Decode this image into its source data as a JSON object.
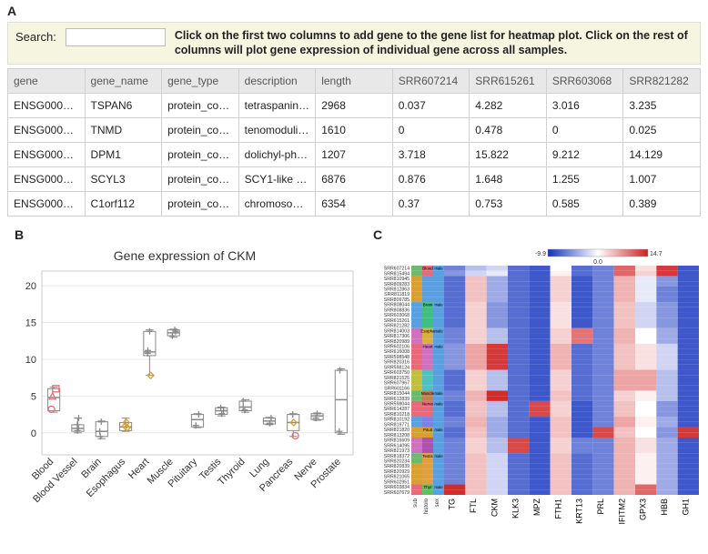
{
  "panel_labels": {
    "a": "A",
    "b": "B",
    "c": "C"
  },
  "search": {
    "label": "Search:",
    "placeholder": ""
  },
  "instruction": "Click on the first two columns to add gene to the gene list for heatmap plot. Click on the rest of columns will plot gene expression of individual gene across all samples.",
  "table": {
    "columns": [
      "gene",
      "gene_name",
      "gene_type",
      "description",
      "length",
      "SRR607214",
      "SRR615261",
      "SRR603068",
      "SRR821282"
    ],
    "rows": [
      [
        "ENSG0000…",
        "TSPAN6",
        "protein_coding",
        "tetraspanin …",
        "2968",
        "0.037",
        "4.282",
        "3.016",
        "3.235"
      ],
      [
        "ENSG0000…",
        "TNMD",
        "protein_coding",
        "tenomodulin…",
        "1610",
        "0",
        "0.478",
        "0",
        "0.025"
      ],
      [
        "ENSG0000…",
        "DPM1",
        "protein_coding",
        "dolichyl-pho…",
        "1207",
        "3.718",
        "15.822",
        "9.212",
        "14.129"
      ],
      [
        "ENSG0000…",
        "SCYL3",
        "protein_coding",
        "SCY1-like 3 …",
        "6876",
        "0.876",
        "1.648",
        "1.255",
        "1.007"
      ],
      [
        "ENSG0000…",
        "C1orf112",
        "protein_coding",
        "chromosom…",
        "6354",
        "0.37",
        "0.753",
        "0.585",
        "0.389"
      ]
    ]
  },
  "boxplot": {
    "title": "Gene expression of CKM",
    "title_fontsize": 14,
    "ylim": [
      -3,
      22
    ],
    "yticks": [
      0,
      5,
      10,
      15,
      20
    ],
    "categories": [
      "Blood",
      "Blood Vessel",
      "Brain",
      "Esophagus",
      "Heart",
      "Muscle",
      "Pituitary",
      "Testis",
      "Thyroid",
      "Lung",
      "Pancreas",
      "Nerve",
      "Prostate"
    ],
    "boxes": [
      {
        "q1": 3.0,
        "median": 4.8,
        "q3": 6.0,
        "whisker_lo": 2.8,
        "whisker_hi": 6.2
      },
      {
        "q1": 0.2,
        "median": 0.6,
        "q3": 1.1,
        "whisker_lo": 0.0,
        "whisker_hi": 2.0
      },
      {
        "q1": -0.5,
        "median": 0.2,
        "q3": 1.5,
        "whisker_lo": -0.8,
        "whisker_hi": 1.6
      },
      {
        "q1": 0.3,
        "median": 0.8,
        "q3": 1.4,
        "whisker_lo": 0.2,
        "whisker_hi": 2.0
      },
      {
        "q1": 10.5,
        "median": 11.0,
        "q3": 13.8,
        "whisker_lo": 7.8,
        "whisker_hi": 14.0
      },
      {
        "q1": 13.2,
        "median": 13.6,
        "q3": 14.0,
        "whisker_lo": 13.0,
        "whisker_hi": 14.1
      },
      {
        "q1": 0.8,
        "median": 1.8,
        "q3": 2.5,
        "whisker_lo": 0.7,
        "whisker_hi": 2.6
      },
      {
        "q1": 2.5,
        "median": 3.0,
        "q3": 3.4,
        "whisker_lo": 2.3,
        "whisker_hi": 3.5
      },
      {
        "q1": 3.0,
        "median": 3.5,
        "q3": 4.3,
        "whisker_lo": 2.8,
        "whisker_hi": 4.5
      },
      {
        "q1": 1.2,
        "median": 1.6,
        "q3": 2.0,
        "whisker_lo": 1.1,
        "whisker_hi": 2.1
      },
      {
        "q1": 0.3,
        "median": 1.4,
        "q3": 2.5,
        "whisker_lo": -0.5,
        "whisker_hi": 2.6
      },
      {
        "q1": 1.8,
        "median": 2.3,
        "q3": 2.6,
        "whisker_lo": 1.7,
        "whisker_hi": 2.7
      },
      {
        "q1": 0.0,
        "median": 4.5,
        "q3": 8.5,
        "whisker_lo": -0.2,
        "whisker_hi": 8.7
      }
    ],
    "points": [
      {
        "cat": 0,
        "y": 3.2,
        "shape": "circle",
        "color": "#e86a7a"
      },
      {
        "cat": 0,
        "y": 5.0,
        "shape": "triangle",
        "color": "#e86a7a"
      },
      {
        "cat": 0,
        "y": 6.0,
        "shape": "square",
        "color": "#e86a7a"
      },
      {
        "cat": 1,
        "y": 0.3,
        "shape": "plus",
        "color": "#888"
      },
      {
        "cat": 1,
        "y": 0.6,
        "shape": "plus",
        "color": "#888"
      },
      {
        "cat": 1,
        "y": 1.1,
        "shape": "plus",
        "color": "#888"
      },
      {
        "cat": 1,
        "y": 2.0,
        "shape": "plus",
        "color": "#888"
      },
      {
        "cat": 2,
        "y": 0.2,
        "shape": "plus",
        "color": "#888"
      },
      {
        "cat": 2,
        "y": 1.5,
        "shape": "plus",
        "color": "#888"
      },
      {
        "cat": 2,
        "y": -0.5,
        "shape": "plus",
        "color": "#888"
      },
      {
        "cat": 3,
        "y": 0.7,
        "shape": "diamond",
        "color": "#d8a030"
      },
      {
        "cat": 3,
        "y": 0.9,
        "shape": "diamond",
        "color": "#d8a030"
      },
      {
        "cat": 3,
        "y": 1.4,
        "shape": "diamond",
        "color": "#d8a030"
      },
      {
        "cat": 4,
        "y": 7.8,
        "shape": "diamond",
        "color": "#d8a030"
      },
      {
        "cat": 4,
        "y": 10.8,
        "shape": "plus",
        "color": "#888"
      },
      {
        "cat": 4,
        "y": 11.2,
        "shape": "plus",
        "color": "#888"
      },
      {
        "cat": 4,
        "y": 13.8,
        "shape": "plus",
        "color": "#888"
      },
      {
        "cat": 5,
        "y": 13.2,
        "shape": "plus",
        "color": "#888"
      },
      {
        "cat": 5,
        "y": 13.8,
        "shape": "plus",
        "color": "#888"
      },
      {
        "cat": 5,
        "y": 14.0,
        "shape": "plus",
        "color": "#888"
      },
      {
        "cat": 6,
        "y": 1.0,
        "shape": "plus",
        "color": "#888"
      },
      {
        "cat": 6,
        "y": 2.5,
        "shape": "plus",
        "color": "#888"
      },
      {
        "cat": 7,
        "y": 2.6,
        "shape": "plus",
        "color": "#888"
      },
      {
        "cat": 7,
        "y": 3.0,
        "shape": "plus",
        "color": "#888"
      },
      {
        "cat": 7,
        "y": 3.4,
        "shape": "plus",
        "color": "#888"
      },
      {
        "cat": 8,
        "y": 3.1,
        "shape": "plus",
        "color": "#888"
      },
      {
        "cat": 8,
        "y": 3.5,
        "shape": "plus",
        "color": "#888"
      },
      {
        "cat": 8,
        "y": 4.3,
        "shape": "plus",
        "color": "#888"
      },
      {
        "cat": 9,
        "y": 1.3,
        "shape": "plus",
        "color": "#888"
      },
      {
        "cat": 9,
        "y": 2.0,
        "shape": "plus",
        "color": "#888"
      },
      {
        "cat": 10,
        "y": -0.4,
        "shape": "circle",
        "color": "#e86a7a"
      },
      {
        "cat": 10,
        "y": 1.4,
        "shape": "diamond",
        "color": "#d8a030"
      },
      {
        "cat": 10,
        "y": 2.5,
        "shape": "plus",
        "color": "#888"
      },
      {
        "cat": 11,
        "y": 2.0,
        "shape": "plus",
        "color": "#888"
      },
      {
        "cat": 11,
        "y": 2.6,
        "shape": "plus",
        "color": "#888"
      },
      {
        "cat": 12,
        "y": 0.2,
        "shape": "plus",
        "color": "#888"
      },
      {
        "cat": 12,
        "y": 8.5,
        "shape": "plus",
        "color": "#888"
      }
    ],
    "colors": {
      "box_stroke": "#888",
      "grid": "#e8e8e8",
      "axis": "#333"
    }
  },
  "heatmap": {
    "legend": {
      "lo": "-9.9",
      "mid": "0.0",
      "hi": "14.7",
      "lo_color": "#1030c0",
      "mid_color": "#ffffff",
      "hi_color": "#d02020"
    },
    "row_labels": [
      "SRR607214",
      "SRR815494",
      "SRR810945",
      "SRR809283",
      "SRR812863",
      "SRR811819",
      "SRR809785",
      "SRR808044",
      "SRR808836",
      "SRR603068",
      "SRR615261",
      "SRR821282",
      "SRR814003",
      "SRR817306",
      "SRR820989",
      "SRR602106",
      "SRR616008",
      "SRR598548",
      "SRR820316",
      "SRR598124",
      "SRR603750",
      "SRR821525",
      "SRR607967",
      "SRR601166",
      "SRR815044",
      "SRR612839",
      "SRR598044",
      "SRR614287",
      "SRR810218",
      "SRR810192",
      "SRR819771",
      "SRR821820",
      "SRR813208",
      "SRR816609",
      "SRR614095",
      "SRR821973",
      "SRR818372",
      "SRR820234",
      "SRR820839",
      "SRR820929",
      "SRR821065",
      "SRR602951",
      "SRR603834",
      "SRR607679"
    ],
    "col_labels": [
      "TG",
      "FTL",
      "CKM",
      "KLK3",
      "MPZ",
      "FTH1",
      "KRT13",
      "PRL",
      "IFITM2",
      "GPX3",
      "HBB",
      "GH1"
    ],
    "annot_labels": [
      "sub",
      "histolo",
      "sex"
    ],
    "annot_colors": {
      "sub": [
        "#6fb96f",
        "#6fb96f",
        "#d8a030",
        "#d8a030",
        "#d8a030",
        "#d8a030",
        "#d8a030",
        "#5aa0e0",
        "#5aa0e0",
        "#5aa0e0",
        "#5aa0e0",
        "#5aa0e0",
        "#d070c0",
        "#d070c0",
        "#d070c0",
        "#e86a7a",
        "#e86a7a",
        "#e86a7a",
        "#e86a7a",
        "#e86a7a",
        "#bfbf40",
        "#bfbf40",
        "#bfbf40",
        "#bfbf40",
        "#6fb96f",
        "#6fb96f",
        "#e86a7a",
        "#e86a7a",
        "#e86a7a",
        "#5aa0e0",
        "#5aa0e0",
        "#d8a030",
        "#d8a030",
        "#d070c0",
        "#d070c0",
        "#d070c0",
        "#6fb96f",
        "#6fb96f",
        "#d8a030",
        "#d8a030",
        "#d8a030",
        "#d8a030",
        "#e86a7a",
        "#e86a7a"
      ],
      "histolo": [
        "#e86a7a",
        "#e86a7a",
        "#5aa0e0",
        "#5aa0e0",
        "#5aa0e0",
        "#5aa0e0",
        "#5aa0e0",
        "#40c080",
        "#40c080",
        "#40c080",
        "#40c080",
        "#40c080",
        "#d8b040",
        "#d8b040",
        "#d8b040",
        "#d070c0",
        "#d070c0",
        "#d070c0",
        "#d070c0",
        "#d070c0",
        "#50c0c0",
        "#50c0c0",
        "#50c0c0",
        "#50c0c0",
        "#c08050",
        "#c08050",
        "#e86a7a",
        "#e86a7a",
        "#e86a7a",
        "#8080e0",
        "#8080e0",
        "#d8a030",
        "#d8a030",
        "#b050b0",
        "#b050b0",
        "#b050b0",
        "#e0a040",
        "#e0a040",
        "#e0a040",
        "#e0a040",
        "#e0a040",
        "#e0a040",
        "#60c060",
        "#60c060"
      ],
      "sex": [
        "#5aa0e0",
        "#5aa0e0",
        "#5aa0e0",
        "#5aa0e0",
        "#5aa0e0",
        "#5aa0e0",
        "#5aa0e0",
        "#5aa0e0",
        "#5aa0e0",
        "#5aa0e0",
        "#5aa0e0",
        "#5aa0e0",
        "#5aa0e0",
        "#5aa0e0",
        "#5aa0e0",
        "#5aa0e0",
        "#5aa0e0",
        "#5aa0e0",
        "#5aa0e0",
        "#5aa0e0",
        "#5aa0e0",
        "#5aa0e0",
        "#5aa0e0",
        "#5aa0e0",
        "#5aa0e0",
        "#5aa0e0",
        "#5aa0e0",
        "#5aa0e0",
        "#5aa0e0",
        "#5aa0e0",
        "#5aa0e0",
        "#5aa0e0",
        "#5aa0e0",
        "#5aa0e0",
        "#5aa0e0",
        "#5aa0e0",
        "#5aa0e0",
        "#5aa0e0",
        "#5aa0e0",
        "#5aa0e0",
        "#5aa0e0",
        "#5aa0e0",
        "#5aa0e0",
        "#5aa0e0"
      ]
    },
    "annot_text": [
      "Blood",
      "",
      "",
      "",
      "",
      "",
      "",
      "Brain",
      "",
      "",
      "",
      "",
      "Esopha",
      "",
      "",
      "Heart",
      "",
      "",
      "",
      "",
      "",
      "",
      "",
      "",
      "Muscle",
      "",
      "Nerve",
      "",
      "",
      "",
      "",
      "Pituit",
      "",
      "",
      "",
      "",
      "Testis",
      "",
      "",
      "",
      "",
      "",
      "Thyr",
      ""
    ],
    "sex_text": [
      "male",
      "",
      "",
      "",
      "",
      "",
      "",
      "male",
      "",
      "",
      "",
      "",
      "male",
      "",
      "",
      "male",
      "",
      "",
      "",
      "",
      "",
      "",
      "",
      "",
      "male",
      "",
      "male",
      "",
      "",
      "",
      "",
      "male",
      "",
      "",
      "",
      "",
      "male",
      "",
      "",
      "",
      "",
      "",
      "male",
      ""
    ],
    "values": [
      [
        -6,
        -3,
        -2,
        -7,
        -8,
        0,
        -7,
        -6,
        10,
        2,
        13,
        -8
      ],
      [
        -5,
        -2,
        -1,
        -7,
        -8,
        1,
        -7,
        -6,
        10,
        3,
        13,
        -8
      ],
      [
        -7,
        4,
        -4,
        -7,
        -8,
        3,
        -8,
        -6,
        5,
        -1,
        -5,
        -8
      ],
      [
        -7,
        4,
        -4,
        -7,
        -8,
        3,
        -8,
        -6,
        5,
        -1,
        -5,
        -8
      ],
      [
        -7,
        4,
        -4,
        -7,
        -8,
        3,
        -8,
        -6,
        5,
        -1,
        -6,
        -8
      ],
      [
        -7,
        4,
        -4,
        -7,
        -8,
        3,
        -8,
        -6,
        5,
        -1,
        -6,
        -8
      ],
      [
        -7,
        4,
        -4,
        -7,
        -8,
        3,
        -8,
        -6,
        5,
        -1,
        -6,
        -8
      ],
      [
        -7,
        3,
        -5,
        -7,
        -8,
        2,
        -8,
        -6,
        4,
        -2,
        -5,
        -8
      ],
      [
        -7,
        3,
        -5,
        -7,
        -8,
        2,
        -8,
        -6,
        4,
        -2,
        -5,
        -8
      ],
      [
        -7,
        3,
        -5,
        -7,
        -8,
        2,
        -8,
        -6,
        4,
        -2,
        -5,
        -8
      ],
      [
        -7,
        3,
        -5,
        -7,
        -8,
        2,
        -8,
        -6,
        4,
        -2,
        -5,
        -8
      ],
      [
        -7,
        3,
        -5,
        -7,
        -8,
        2,
        -8,
        -6,
        4,
        -2,
        -5,
        -8
      ],
      [
        -6,
        3,
        -3,
        -7,
        -8,
        3,
        9,
        -6,
        5,
        0,
        -4,
        -8
      ],
      [
        -6,
        3,
        -3,
        -7,
        -8,
        3,
        9,
        -6,
        5,
        0,
        -4,
        -8
      ],
      [
        -6,
        3,
        -3,
        -7,
        -8,
        3,
        9,
        -6,
        5,
        0,
        -4,
        -8
      ],
      [
        -5,
        6,
        13,
        -7,
        -8,
        5,
        -7,
        -6,
        4,
        2,
        -2,
        -8
      ],
      [
        -5,
        6,
        13,
        -7,
        -8,
        5,
        -7,
        -6,
        4,
        2,
        -2,
        -8
      ],
      [
        -5,
        6,
        13,
        -7,
        -8,
        5,
        -7,
        -6,
        4,
        2,
        -2,
        -8
      ],
      [
        -5,
        6,
        13,
        -7,
        -8,
        5,
        -7,
        -6,
        4,
        2,
        -2,
        -8
      ],
      [
        -5,
        6,
        13,
        -7,
        -8,
        5,
        -7,
        -6,
        4,
        2,
        -2,
        -8
      ],
      [
        -7,
        3,
        -3,
        -7,
        -8,
        3,
        -7,
        -6,
        6,
        6,
        -3,
        -8
      ],
      [
        -7,
        3,
        -3,
        -7,
        -8,
        3,
        -7,
        -6,
        6,
        6,
        -3,
        -8
      ],
      [
        -7,
        3,
        -3,
        -7,
        -8,
        3,
        -7,
        -6,
        6,
        6,
        -3,
        -8
      ],
      [
        -7,
        3,
        -3,
        -7,
        -8,
        3,
        -7,
        -6,
        6,
        6,
        -3,
        -8
      ],
      [
        -6,
        5,
        14,
        -7,
        -8,
        4,
        -7,
        -6,
        3,
        1,
        -3,
        -8
      ],
      [
        -6,
        5,
        14,
        -7,
        -8,
        4,
        -7,
        -6,
        3,
        1,
        -3,
        -8
      ],
      [
        -7,
        4,
        -3,
        -7,
        12,
        3,
        -8,
        -6,
        4,
        0,
        -5,
        -8
      ],
      [
        -7,
        4,
        -3,
        -7,
        12,
        3,
        -8,
        -6,
        4,
        0,
        -5,
        -8
      ],
      [
        -7,
        4,
        -3,
        -7,
        12,
        3,
        -8,
        -6,
        4,
        0,
        -5,
        -8
      ],
      [
        -6,
        5,
        -4,
        -7,
        -8,
        4,
        -8,
        -6,
        6,
        1,
        -4,
        -8
      ],
      [
        -6,
        5,
        -4,
        -7,
        -8,
        4,
        -8,
        -6,
        6,
        1,
        -4,
        -8
      ],
      [
        -7,
        4,
        -4,
        -7,
        -8,
        4,
        -8,
        12,
        4,
        0,
        -5,
        13
      ],
      [
        -7,
        4,
        -4,
        -7,
        -8,
        4,
        -8,
        12,
        4,
        0,
        -5,
        13
      ],
      [
        -6,
        3,
        -3,
        12,
        -8,
        3,
        -6,
        -6,
        5,
        2,
        -4,
        -8
      ],
      [
        -6,
        3,
        -3,
        12,
        -8,
        3,
        -6,
        -6,
        5,
        2,
        -4,
        -8
      ],
      [
        -6,
        3,
        -3,
        12,
        -8,
        3,
        -6,
        -6,
        5,
        2,
        -4,
        -8
      ],
      [
        -6,
        4,
        -2,
        -7,
        -8,
        4,
        -7,
        -6,
        5,
        1,
        -4,
        -8
      ],
      [
        -6,
        4,
        -2,
        -7,
        -8,
        4,
        -7,
        -6,
        5,
        1,
        -4,
        -8
      ],
      [
        -6,
        4,
        -2,
        -7,
        -8,
        4,
        -7,
        -6,
        5,
        1,
        -4,
        -8
      ],
      [
        -6,
        4,
        -2,
        -7,
        -8,
        4,
        -7,
        -6,
        5,
        1,
        -4,
        -8
      ],
      [
        -6,
        4,
        -2,
        -7,
        -8,
        4,
        -7,
        -6,
        5,
        1,
        -4,
        -8
      ],
      [
        -6,
        4,
        -2,
        -7,
        -8,
        4,
        -7,
        -6,
        5,
        1,
        -4,
        -8
      ],
      [
        14,
        4,
        -2,
        -7,
        -8,
        4,
        -7,
        -6,
        5,
        10,
        -4,
        -8
      ],
      [
        14,
        4,
        -2,
        -7,
        -8,
        4,
        -7,
        -6,
        5,
        10,
        -4,
        -8
      ]
    ]
  }
}
